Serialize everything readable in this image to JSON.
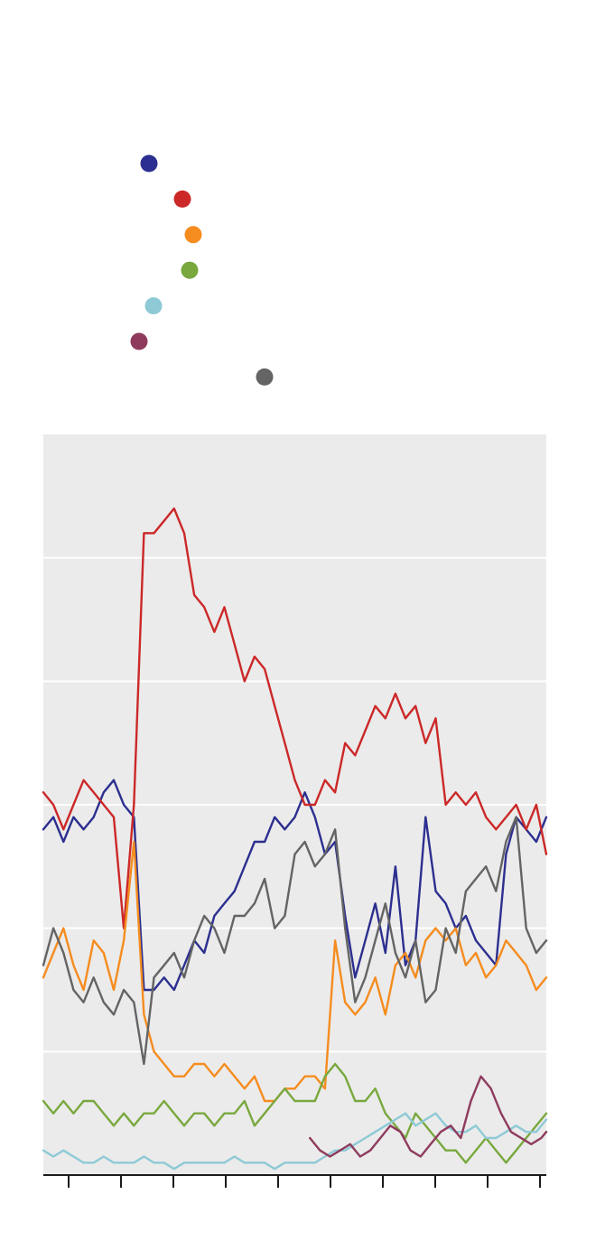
{
  "chart_data": {
    "type": "line",
    "title": "",
    "xlabel": "",
    "ylabel": "",
    "grid": true,
    "x_range": [
      0,
      100
    ],
    "ylim": [
      0,
      6
    ],
    "legend": {
      "placement": "top-left",
      "entries": [
        "",
        "",
        "",
        "",
        "",
        "",
        ""
      ]
    },
    "series": [
      {
        "color": "#2c2f8f",
        "x": [
          0,
          2,
          4,
          6,
          8,
          10,
          12,
          14,
          16,
          18,
          20,
          22,
          24,
          26,
          28,
          30,
          32,
          34,
          36,
          38,
          40,
          42,
          44,
          46,
          48,
          50,
          52,
          54,
          56,
          58,
          60,
          62,
          64,
          66,
          68,
          70,
          72,
          74,
          76,
          78,
          80,
          82,
          84,
          86,
          88,
          90,
          92,
          94,
          96,
          98,
          100
        ],
        "y": [
          2.8,
          2.9,
          2.7,
          2.9,
          2.8,
          2.9,
          3.1,
          3.2,
          3.0,
          2.9,
          1.5,
          1.5,
          1.6,
          1.5,
          1.7,
          1.9,
          1.8,
          2.1,
          2.2,
          2.3,
          2.5,
          2.7,
          2.7,
          2.9,
          2.8,
          2.9,
          3.1,
          2.9,
          2.6,
          2.7,
          2.1,
          1.6,
          1.9,
          2.2,
          1.8,
          2.5,
          1.7,
          1.9,
          2.9,
          2.3,
          2.2,
          2.0,
          2.1,
          1.9,
          1.8,
          1.7,
          2.6,
          2.9,
          2.8,
          2.7,
          2.9
        ]
      },
      {
        "color": "#cc2828",
        "x": [
          0,
          2,
          4,
          6,
          8,
          10,
          12,
          14,
          16,
          18,
          20,
          22,
          24,
          26,
          28,
          30,
          32,
          34,
          36,
          38,
          40,
          42,
          44,
          46,
          48,
          50,
          52,
          54,
          56,
          58,
          60,
          62,
          64,
          66,
          68,
          70,
          72,
          74,
          76,
          78,
          80,
          82,
          84,
          86,
          88,
          90,
          92,
          94,
          96,
          98,
          100
        ],
        "y": [
          3.1,
          3.0,
          2.8,
          3.0,
          3.2,
          3.1,
          3.0,
          2.9,
          2.0,
          3.0,
          5.2,
          5.2,
          5.3,
          5.4,
          5.2,
          4.7,
          4.6,
          4.4,
          4.6,
          4.3,
          4.0,
          4.2,
          4.1,
          3.8,
          3.5,
          3.2,
          3.0,
          3.0,
          3.2,
          3.1,
          3.5,
          3.4,
          3.6,
          3.8,
          3.7,
          3.9,
          3.7,
          3.8,
          3.5,
          3.7,
          3.0,
          3.1,
          3.0,
          3.1,
          2.9,
          2.8,
          2.9,
          3.0,
          2.8,
          3.0,
          2.6
        ]
      },
      {
        "color": "#f58c1f",
        "x": [
          0,
          2,
          4,
          6,
          8,
          10,
          12,
          14,
          16,
          18,
          20,
          22,
          24,
          26,
          28,
          30,
          32,
          34,
          36,
          38,
          40,
          42,
          44,
          46,
          48,
          50,
          52,
          54,
          56,
          58,
          60,
          62,
          64,
          66,
          68,
          70,
          72,
          74,
          76,
          78,
          80,
          82,
          84,
          86,
          88,
          90,
          92,
          94,
          96,
          98,
          100
        ],
        "y": [
          1.6,
          1.8,
          2.0,
          1.7,
          1.5,
          1.9,
          1.8,
          1.5,
          1.9,
          2.7,
          1.3,
          1.0,
          0.9,
          0.8,
          0.8,
          0.9,
          0.9,
          0.8,
          0.9,
          0.8,
          0.7,
          0.8,
          0.6,
          0.6,
          0.7,
          0.7,
          0.8,
          0.8,
          0.7,
          1.9,
          1.4,
          1.3,
          1.4,
          1.6,
          1.3,
          1.7,
          1.8,
          1.6,
          1.9,
          2.0,
          1.9,
          2.0,
          1.7,
          1.8,
          1.6,
          1.7,
          1.9,
          1.8,
          1.7,
          1.5,
          1.6
        ]
      },
      {
        "color": "#79a83e",
        "x": [
          0,
          2,
          4,
          6,
          8,
          10,
          12,
          14,
          16,
          18,
          20,
          22,
          24,
          26,
          28,
          30,
          32,
          34,
          36,
          38,
          40,
          42,
          44,
          46,
          48,
          50,
          52,
          54,
          56,
          58,
          60,
          62,
          64,
          66,
          68,
          70,
          72,
          74,
          76,
          78,
          80,
          82,
          84,
          86,
          88,
          90,
          92,
          94,
          96,
          98,
          100
        ],
        "y": [
          0.6,
          0.5,
          0.6,
          0.5,
          0.6,
          0.6,
          0.5,
          0.4,
          0.5,
          0.4,
          0.5,
          0.5,
          0.6,
          0.5,
          0.4,
          0.5,
          0.5,
          0.4,
          0.5,
          0.5,
          0.6,
          0.4,
          0.5,
          0.6,
          0.7,
          0.6,
          0.6,
          0.6,
          0.8,
          0.9,
          0.8,
          0.6,
          0.6,
          0.7,
          0.5,
          0.4,
          0.3,
          0.5,
          0.4,
          0.3,
          0.2,
          0.2,
          0.1,
          0.2,
          0.3,
          0.2,
          0.1,
          0.2,
          0.3,
          0.4,
          0.5
        ]
      },
      {
        "color": "#8ecad6",
        "x": [
          0,
          2,
          4,
          6,
          8,
          10,
          12,
          14,
          16,
          18,
          20,
          22,
          24,
          26,
          28,
          30,
          32,
          34,
          36,
          38,
          40,
          42,
          44,
          46,
          48,
          50,
          52,
          54,
          56,
          58,
          60,
          62,
          64,
          66,
          68,
          70,
          72,
          74,
          76,
          78,
          80,
          82,
          84,
          86,
          88,
          90,
          92,
          94,
          96,
          98,
          100
        ],
        "y": [
          0.2,
          0.15,
          0.2,
          0.15,
          0.1,
          0.1,
          0.15,
          0.1,
          0.1,
          0.1,
          0.15,
          0.1,
          0.1,
          0.05,
          0.1,
          0.1,
          0.1,
          0.1,
          0.1,
          0.15,
          0.1,
          0.1,
          0.1,
          0.05,
          0.1,
          0.1,
          0.1,
          0.1,
          0.15,
          0.2,
          0.2,
          0.25,
          0.3,
          0.35,
          0.4,
          0.45,
          0.5,
          0.4,
          0.45,
          0.5,
          0.4,
          0.35,
          0.35,
          0.4,
          0.3,
          0.3,
          0.35,
          0.4,
          0.35,
          0.35,
          0.45
        ]
      },
      {
        "color": "#8e3b5e",
        "x": [
          53,
          55,
          57,
          59,
          61,
          63,
          65,
          67,
          69,
          71,
          73,
          75,
          77,
          79,
          81,
          83,
          85,
          87,
          89,
          91,
          93,
          95,
          97,
          99,
          100
        ],
        "y": [
          0.3,
          0.2,
          0.15,
          0.2,
          0.25,
          0.15,
          0.2,
          0.3,
          0.4,
          0.35,
          0.2,
          0.15,
          0.25,
          0.35,
          0.4,
          0.3,
          0.6,
          0.8,
          0.7,
          0.5,
          0.35,
          0.3,
          0.25,
          0.3,
          0.35
        ]
      },
      {
        "color": "#646464",
        "x": [
          0,
          2,
          4,
          6,
          8,
          10,
          12,
          14,
          16,
          18,
          20,
          22,
          24,
          26,
          28,
          30,
          32,
          34,
          36,
          38,
          40,
          42,
          44,
          46,
          48,
          50,
          52,
          54,
          56,
          58,
          60,
          62,
          64,
          66,
          68,
          70,
          72,
          74,
          76,
          78,
          80,
          82,
          84,
          86,
          88,
          90,
          92,
          94,
          96,
          98,
          100
        ],
        "y": [
          1.7,
          2.0,
          1.8,
          1.5,
          1.4,
          1.6,
          1.4,
          1.3,
          1.5,
          1.4,
          0.9,
          1.6,
          1.7,
          1.8,
          1.6,
          1.9,
          2.1,
          2.0,
          1.8,
          2.1,
          2.1,
          2.2,
          2.4,
          2.0,
          2.1,
          2.6,
          2.7,
          2.5,
          2.6,
          2.8,
          2.0,
          1.4,
          1.6,
          1.9,
          2.2,
          1.8,
          1.6,
          1.9,
          1.4,
          1.5,
          2.0,
          1.8,
          2.3,
          2.4,
          2.5,
          2.3,
          2.7,
          2.9,
          2.0,
          1.8,
          1.9
        ]
      }
    ]
  }
}
